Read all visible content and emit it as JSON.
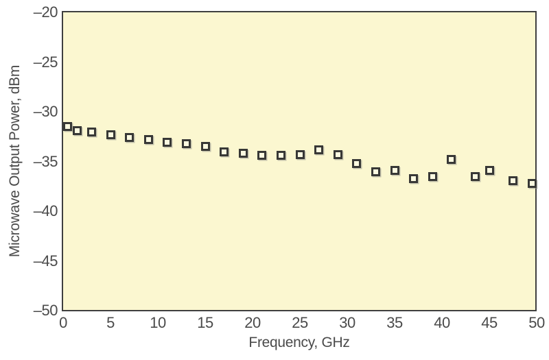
{
  "chart_data": {
    "type": "scatter",
    "marker_style": "open-square",
    "title": "",
    "xlabel": "Frequency, GHz",
    "ylabel": "Microwave Output Power, dBm",
    "xlim": [
      0,
      50
    ],
    "ylim": [
      -50,
      -20
    ],
    "grid": false,
    "legend": "none",
    "x_ticks": [
      0,
      5,
      10,
      15,
      20,
      25,
      30,
      35,
      40,
      45,
      50
    ],
    "x_tick_labels": [
      "0",
      "5",
      "10",
      "15",
      "20",
      "25",
      "30",
      "35",
      "40",
      "45",
      "50"
    ],
    "y_ticks": [
      -20,
      -25,
      -30,
      -35,
      -40,
      -45,
      -50
    ],
    "y_tick_labels": [
      "–20",
      "–25",
      "–30",
      "–35",
      "–40",
      "–45",
      "–50"
    ],
    "series": [
      {
        "name": "Microwave output power",
        "x": [
          0.5,
          1.5,
          3,
          5,
          7,
          9,
          11,
          13,
          15,
          17,
          19,
          21,
          23,
          25,
          27,
          29,
          31,
          33,
          35,
          37,
          39,
          41,
          43.5,
          45,
          47.5,
          49.5
        ],
        "y": [
          -31.5,
          -31.9,
          -32.0,
          -32.3,
          -32.6,
          -32.8,
          -33.1,
          -33.2,
          -33.5,
          -34.0,
          -34.2,
          -34.4,
          -34.4,
          -34.3,
          -33.8,
          -34.3,
          -35.2,
          -36.0,
          -35.9,
          -36.7,
          -36.5,
          -34.8,
          -36.5,
          -35.9,
          -36.9,
          -37.2
        ]
      }
    ],
    "colors": {
      "figure_background": "#FFFFFF",
      "plot_background": "#FBF7D0",
      "axis": "#3F3F3F",
      "marker_border": "#383836",
      "marker_fill": "#FCFAE1",
      "text": "#4A4A4A"
    }
  }
}
